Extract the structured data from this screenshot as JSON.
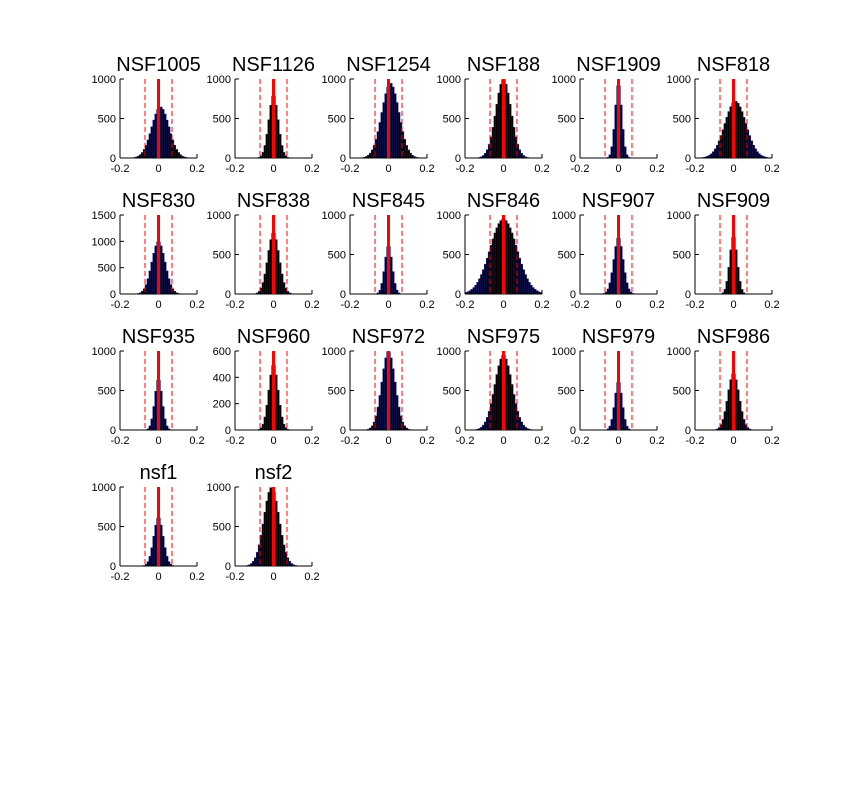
{
  "figure": {
    "background": "#ffffff"
  },
  "style": {
    "bar_fill": "#000000",
    "bar_edge": "#1a1a8c",
    "center_line_color": "#ff0000",
    "threshold_line_color": "#ff0000"
  },
  "chart_data": [
    {
      "type": "bar",
      "title": "NSF1005",
      "xlim": [
        -0.2,
        0.2
      ],
      "ylim": [
        0,
        1000
      ],
      "xticks": [
        "-0.2",
        "0",
        "0.2"
      ],
      "yticks": [
        "0",
        "500",
        "1000"
      ],
      "center_line": 0,
      "threshold_lines": [
        -0.07,
        0.07
      ],
      "shape": {
        "peak": 650,
        "sigma": 0.045,
        "mean": 0.01
      }
    },
    {
      "type": "bar",
      "title": "NSF1126",
      "xlim": [
        -0.2,
        0.2
      ],
      "ylim": [
        0,
        1000
      ],
      "xticks": [
        "-0.2",
        "0",
        "0.2"
      ],
      "yticks": [
        "0",
        "500",
        "1000"
      ],
      "center_line": 0,
      "threshold_lines": [
        -0.07,
        0.07
      ],
      "shape": {
        "peak": 800,
        "sigma": 0.025,
        "mean": 0.0
      }
    },
    {
      "type": "bar",
      "title": "NSF1254",
      "xlim": [
        -0.2,
        0.2
      ],
      "ylim": [
        0,
        1000
      ],
      "xticks": [
        "-0.2",
        "0",
        "0.2"
      ],
      "yticks": [
        "0",
        "500",
        "1000"
      ],
      "center_line": 0,
      "threshold_lines": [
        -0.07,
        0.07
      ],
      "shape": {
        "peak": 950,
        "sigma": 0.045,
        "mean": 0.01
      }
    },
    {
      "type": "bar",
      "title": "NSF188",
      "xlim": [
        -0.2,
        0.2
      ],
      "ylim": [
        0,
        1000
      ],
      "xticks": [
        "-0.2",
        "0",
        "0.2"
      ],
      "yticks": [
        "0",
        "500",
        "1000"
      ],
      "center_line": 0,
      "threshold_lines": [
        -0.07,
        0.07
      ],
      "shape": {
        "peak": 1000,
        "sigma": 0.04,
        "mean": 0.0
      }
    },
    {
      "type": "bar",
      "title": "NSF1909",
      "xlim": [
        -0.2,
        0.2
      ],
      "ylim": [
        0,
        1000
      ],
      "xticks": [
        "-0.2",
        "0",
        "0.2"
      ],
      "yticks": [
        "0",
        "500",
        "1000"
      ],
      "center_line": 0,
      "threshold_lines": [
        -0.07,
        0.07
      ],
      "shape": {
        "peak": 950,
        "sigma": 0.018,
        "mean": 0.0
      }
    },
    {
      "type": "bar",
      "title": "NSF818",
      "xlim": [
        -0.2,
        0.2
      ],
      "ylim": [
        0,
        1000
      ],
      "xticks": [
        "-0.2",
        "0",
        "0.2"
      ],
      "yticks": [
        "0",
        "500",
        "1000"
      ],
      "center_line": 0,
      "threshold_lines": [
        -0.07,
        0.07
      ],
      "shape": {
        "peak": 720,
        "sigma": 0.055,
        "mean": 0.01
      }
    },
    {
      "type": "bar",
      "title": "NSF830",
      "xlim": [
        -0.2,
        0.2
      ],
      "ylim": [
        0,
        1500
      ],
      "xticks": [
        "-0.2",
        "0",
        "0.2"
      ],
      "yticks": [
        "0",
        "500",
        "1000",
        "1500"
      ],
      "center_line": 0,
      "threshold_lines": [
        -0.07,
        0.07
      ],
      "shape": {
        "peak": 1000,
        "sigma": 0.035,
        "mean": 0.0
      }
    },
    {
      "type": "bar",
      "title": "NSF838",
      "xlim": [
        -0.2,
        0.2
      ],
      "ylim": [
        0,
        1000
      ],
      "xticks": [
        "-0.2",
        "0",
        "0.2"
      ],
      "yticks": [
        "0",
        "500",
        "1000"
      ],
      "center_line": 0,
      "threshold_lines": [
        -0.07,
        0.07
      ],
      "shape": {
        "peak": 780,
        "sigma": 0.03,
        "mean": 0.0
      }
    },
    {
      "type": "bar",
      "title": "NSF845",
      "xlim": [
        -0.2,
        0.2
      ],
      "ylim": [
        0,
        1000
      ],
      "xticks": [
        "-0.2",
        "0",
        "0.2"
      ],
      "yticks": [
        "0",
        "500",
        "1000"
      ],
      "center_line": 0,
      "threshold_lines": [
        -0.07,
        0.07
      ],
      "shape": {
        "peak": 620,
        "sigma": 0.02,
        "mean": 0.0
      }
    },
    {
      "type": "bar",
      "title": "NSF846",
      "xlim": [
        -0.2,
        0.2
      ],
      "ylim": [
        0,
        1000
      ],
      "xticks": [
        "-0.2",
        "0",
        "0.2"
      ],
      "yticks": [
        "0",
        "500",
        "1000"
      ],
      "center_line": 0,
      "threshold_lines": [
        -0.07,
        0.07
      ],
      "shape": {
        "peak": 950,
        "sigma": 0.07,
        "mean": 0.0
      }
    },
    {
      "type": "bar",
      "title": "NSF907",
      "xlim": [
        -0.2,
        0.2
      ],
      "ylim": [
        0,
        1000
      ],
      "xticks": [
        "-0.2",
        "0",
        "0.2"
      ],
      "yticks": [
        "0",
        "500",
        "1000"
      ],
      "center_line": 0,
      "threshold_lines": [
        -0.07,
        0.07
      ],
      "shape": {
        "peak": 720,
        "sigma": 0.025,
        "mean": 0.0
      }
    },
    {
      "type": "bar",
      "title": "NSF909",
      "xlim": [
        -0.2,
        0.2
      ],
      "ylim": [
        0,
        1000
      ],
      "xticks": [
        "-0.2",
        "0",
        "0.2"
      ],
      "yticks": [
        "0",
        "500",
        "1000"
      ],
      "center_line": 0,
      "threshold_lines": [
        -0.07,
        0.07
      ],
      "shape": {
        "peak": 740,
        "sigma": 0.02,
        "mean": 0.0
      }
    },
    {
      "type": "bar",
      "title": "NSF935",
      "xlim": [
        -0.2,
        0.2
      ],
      "ylim": [
        0,
        1000
      ],
      "xticks": [
        "-0.2",
        "0",
        "0.2"
      ],
      "yticks": [
        "0",
        "500",
        "1000"
      ],
      "center_line": 0,
      "threshold_lines": [
        -0.07,
        0.07
      ],
      "shape": {
        "peak": 650,
        "sigma": 0.02,
        "mean": 0.0
      }
    },
    {
      "type": "bar",
      "title": "NSF960",
      "xlim": [
        -0.2,
        0.2
      ],
      "ylim": [
        0,
        600
      ],
      "xticks": [
        "-0.2",
        "0",
        "0.2"
      ],
      "yticks": [
        "0",
        "200",
        "400",
        "600"
      ],
      "center_line": 0,
      "threshold_lines": [
        -0.07,
        0.07
      ],
      "shape": {
        "peak": 500,
        "sigma": 0.025,
        "mean": 0.0
      }
    },
    {
      "type": "bar",
      "title": "NSF972",
      "xlim": [
        -0.2,
        0.2
      ],
      "ylim": [
        0,
        1000
      ],
      "xticks": [
        "-0.2",
        "0",
        "0.2"
      ],
      "yticks": [
        "0",
        "500",
        "1000"
      ],
      "center_line": 0,
      "threshold_lines": [
        -0.07,
        0.07
      ],
      "shape": {
        "peak": 1000,
        "sigma": 0.035,
        "mean": 0.0
      }
    },
    {
      "type": "bar",
      "title": "NSF975",
      "xlim": [
        -0.2,
        0.2
      ],
      "ylim": [
        0,
        1000
      ],
      "xticks": [
        "-0.2",
        "0",
        "0.2"
      ],
      "yticks": [
        "0",
        "500",
        "1000"
      ],
      "center_line": 0,
      "threshold_lines": [
        -0.07,
        0.07
      ],
      "shape": {
        "peak": 950,
        "sigma": 0.045,
        "mean": 0.0
      }
    },
    {
      "type": "bar",
      "title": "NSF979",
      "xlim": [
        -0.2,
        0.2
      ],
      "ylim": [
        0,
        1000
      ],
      "xticks": [
        "-0.2",
        "0",
        "0.2"
      ],
      "yticks": [
        "0",
        "500",
        "1000"
      ],
      "center_line": 0,
      "threshold_lines": [
        -0.07,
        0.07
      ],
      "shape": {
        "peak": 620,
        "sigma": 0.02,
        "mean": 0.0
      }
    },
    {
      "type": "bar",
      "title": "NSF986",
      "xlim": [
        -0.2,
        0.2
      ],
      "ylim": [
        0,
        1000
      ],
      "xticks": [
        "-0.2",
        "0",
        "0.2"
      ],
      "yticks": [
        "0",
        "500",
        "1000"
      ],
      "center_line": 0,
      "threshold_lines": [
        -0.07,
        0.07
      ],
      "shape": {
        "peak": 720,
        "sigma": 0.03,
        "mean": 0.0
      }
    },
    {
      "type": "bar",
      "title": "nsf1",
      "xlim": [
        -0.2,
        0.2
      ],
      "ylim": [
        0,
        1000
      ],
      "xticks": [
        "-0.2",
        "0",
        "0.2"
      ],
      "yticks": [
        "0",
        "500",
        "1000"
      ],
      "center_line": 0,
      "threshold_lines": [
        -0.07,
        0.07
      ],
      "shape": {
        "peak": 620,
        "sigma": 0.025,
        "mean": 0.0
      }
    },
    {
      "type": "bar",
      "title": "nsf2",
      "xlim": [
        -0.2,
        0.2
      ],
      "ylim": [
        0,
        1000
      ],
      "xticks": [
        "-0.2",
        "0",
        "0.2"
      ],
      "yticks": [
        "0",
        "500",
        "1000"
      ],
      "center_line": 0,
      "threshold_lines": [
        -0.07,
        0.07
      ],
      "shape": {
        "peak": 1000,
        "sigma": 0.04,
        "mean": -0.01
      }
    }
  ]
}
